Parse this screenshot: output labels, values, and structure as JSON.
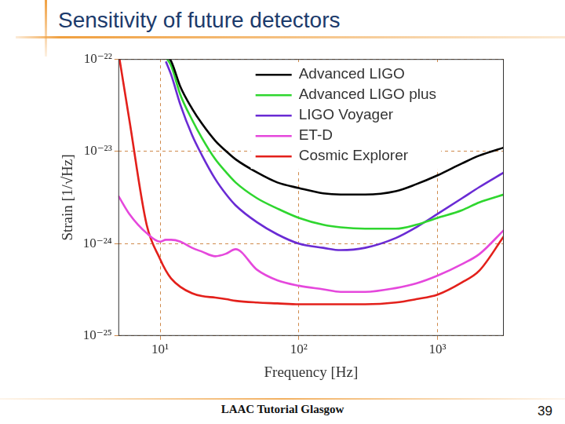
{
  "slide": {
    "title": "Sensitivity of future detectors",
    "footer": "LAAC Tutorial Glasgow",
    "page": 39
  },
  "chart_data": {
    "type": "line",
    "x_label": "Frequency [Hz]",
    "y_label": "Strain [1/√Hz]",
    "log": true,
    "grid": true,
    "legend": "upper right",
    "xlim": [
      5,
      3000
    ],
    "ylim": [
      1e-25,
      1e-22
    ],
    "xticks": [
      {
        "value": 10,
        "label": "10¹"
      },
      {
        "value": 100,
        "label": "10²"
      },
      {
        "value": 1000,
        "label": "10³"
      }
    ],
    "yticks": [
      {
        "value": 1e-25,
        "label": "10⁻²⁵"
      },
      {
        "value": 1e-24,
        "label": "10⁻²⁴"
      },
      {
        "value": 1e-23,
        "label": "10⁻²³"
      },
      {
        "value": 1e-22,
        "label": "10⁻²²"
      }
    ],
    "x": [
      5,
      6,
      8,
      10,
      11,
      12,
      14,
      17,
      20,
      25,
      30,
      35,
      50,
      70,
      100,
      150,
      200,
      300,
      500,
      700,
      1000,
      1500,
      2000,
      3000
    ],
    "series": [
      {
        "name": "Advanced LIGO",
        "color": "#000000",
        "values": [
          null,
          null,
          null,
          null,
          1.1e-22,
          9.5e-23,
          5e-23,
          2.9e-23,
          2e-23,
          1.3e-23,
          1e-23,
          8.2e-24,
          5.9e-24,
          4.6e-24,
          4e-24,
          3.5e-24,
          3.4e-24,
          3.4e-24,
          3.7e-24,
          4.4e-24,
          5.5e-24,
          7.4e-24,
          9e-24,
          1.1e-23
        ]
      },
      {
        "name": "Advanced LIGO plus",
        "color": "#2fd62f",
        "values": [
          null,
          null,
          null,
          null,
          1.05e-22,
          8.5e-23,
          4.1e-23,
          2.2e-23,
          1.4e-23,
          8.2e-24,
          5.9e-24,
          4.6e-24,
          3.1e-24,
          2.4e-24,
          1.9e-24,
          1.6e-24,
          1.5e-24,
          1.45e-24,
          1.45e-24,
          1.6e-24,
          1.9e-24,
          2.3e-24,
          2.8e-24,
          3.4e-24
        ]
      },
      {
        "name": "LIGO Voyager",
        "color": "#6a2bd4",
        "values": [
          null,
          null,
          null,
          null,
          9.4e-23,
          6.8e-23,
          3.2e-23,
          1.5e-23,
          9.1e-24,
          5e-24,
          3.4e-24,
          2.6e-24,
          1.7e-24,
          1.26e-24,
          1e-24,
          9e-25,
          8.5e-25,
          9e-25,
          1.15e-24,
          1.5e-24,
          2.1e-24,
          3.1e-24,
          4.1e-24,
          5.9e-24
        ]
      },
      {
        "name": "ET-D",
        "color": "#e548dc",
        "values": [
          3.3e-24,
          2.1e-24,
          1.3e-24,
          1.05e-24,
          1.1e-24,
          1.1e-24,
          1.05e-24,
          9e-25,
          8.2e-25,
          7.3e-25,
          7.8e-25,
          8.7e-25,
          5.2e-25,
          4e-25,
          3.5e-25,
          3.2e-25,
          3e-25,
          3e-25,
          3.3e-25,
          3.7e-25,
          4.5e-25,
          6e-25,
          7.7e-25,
          1.4e-24
        ]
      },
      {
        "name": "Cosmic Explorer",
        "color": "#e3201b",
        "values": [
          1.2e-22,
          2.2e-23,
          1.6e-24,
          6.8e-25,
          5.1e-25,
          4.2e-25,
          3.4e-25,
          2.9e-25,
          2.7e-25,
          2.6e-25,
          2.5e-25,
          2.4e-25,
          2.3e-25,
          2.25e-25,
          2.2e-25,
          2.2e-25,
          2.2e-25,
          2.2e-25,
          2.3e-25,
          2.5e-25,
          2.8e-25,
          3.8e-25,
          5.1e-25,
          1.2e-24
        ]
      }
    ]
  }
}
